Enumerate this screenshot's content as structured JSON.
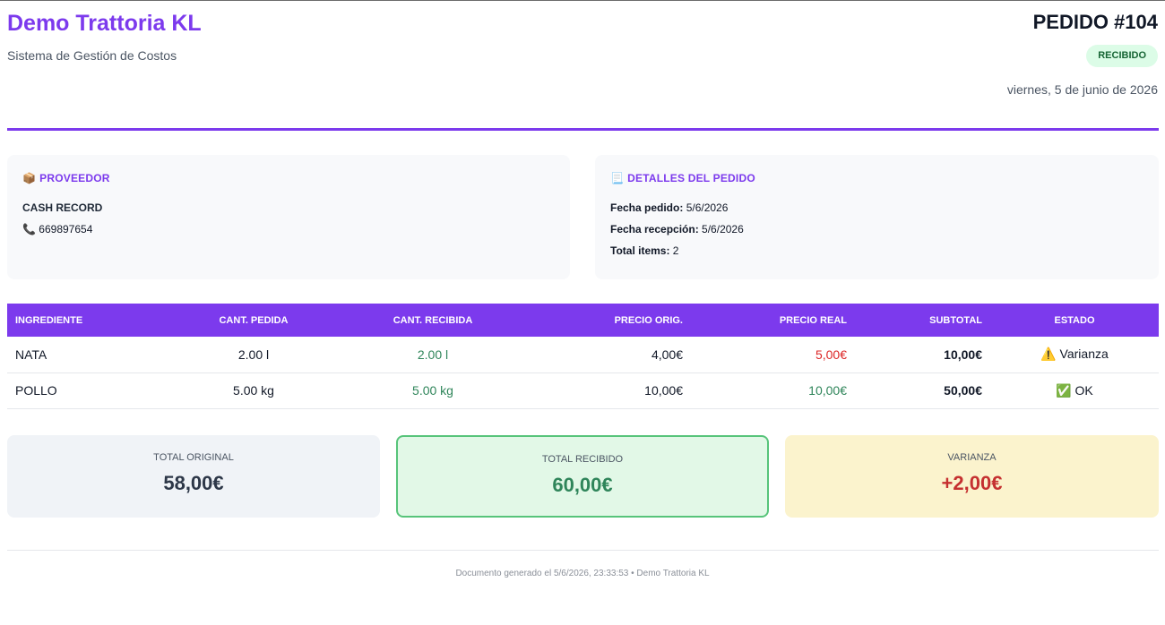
{
  "header": {
    "brand": "Demo Trattoria KL",
    "subtitle": "Sistema de Gestión de Costos",
    "order_number": "PEDIDO #104",
    "status": "RECIBIDO",
    "date": "viernes, 5 de junio de 2026"
  },
  "supplier": {
    "icon": "📦",
    "title": "PROVEEDOR",
    "name": "CASH RECORD",
    "phone_icon": "📞",
    "phone": "669897654"
  },
  "details": {
    "icon": "📃",
    "title": "DETALLES DEL PEDIDO",
    "order_date_label": "Fecha pedido:",
    "order_date": "5/6/2026",
    "reception_date_label": "Fecha recepción:",
    "reception_date": "5/6/2026",
    "total_items_label": "Total items:",
    "total_items": "2"
  },
  "table": {
    "headers": [
      "INGREDIENTE",
      "CANT. PEDIDA",
      "CANT. RECIBIDA",
      "PRECIO ORIG.",
      "PRECIO REAL",
      "SUBTOTAL",
      "ESTADO"
    ],
    "rows": [
      {
        "ingredient": "NATA",
        "qty_ordered": "2.00 l",
        "qty_received": "2.00 l",
        "price_orig": "4,00€",
        "price_real": "5,00€",
        "subtotal": "10,00€",
        "status_icon": "⚠️",
        "status": "Varianza"
      },
      {
        "ingredient": "POLLO",
        "qty_ordered": "5.00 kg",
        "qty_received": "5.00 kg",
        "price_orig": "10,00€",
        "price_real": "10,00€",
        "subtotal": "50,00€",
        "status_icon": "✅",
        "status": "OK"
      }
    ]
  },
  "totals": {
    "original_label": "TOTAL ORIGINAL",
    "original_value": "58,00€",
    "received_label": "TOTAL RECIBIDO",
    "received_value": "60,00€",
    "variance_label": "VARIANZA",
    "variance_value": "+2,00€"
  },
  "footer": "Documento generado el 5/6/2026, 23:33:53 • Demo Trattoria KL",
  "colors": {
    "accent": "#7c3aed",
    "ok": "#2f855a",
    "alert": "#dc2626",
    "badge_bg": "#dcfce7"
  }
}
